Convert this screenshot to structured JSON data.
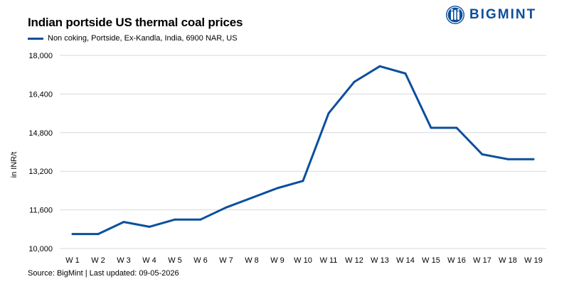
{
  "brand": {
    "name": "BIGMINT",
    "icon": "bigmint-logo-icon"
  },
  "colors": {
    "series": "#0b4f9c",
    "grid": "#d9d9d9",
    "brand": "#0b4f9c"
  },
  "source": "Source: BigMint | Last updated: 09-05-2026",
  "chart_data": {
    "type": "line",
    "title": "Indian portside US thermal coal prices",
    "xlabel": "",
    "ylabel": "in INR/t",
    "ylim": [
      10000,
      18000
    ],
    "yticks": [
      10000,
      11600,
      13200,
      14800,
      16400,
      18000
    ],
    "ytick_labels": [
      "10,000",
      "11,600",
      "13,200",
      "14,800",
      "16,400",
      "18,000"
    ],
    "grid": true,
    "legend_position": "top-left",
    "categories": [
      "W 1",
      "W 2",
      "W 3",
      "W 4",
      "W 5",
      "W 6",
      "W 7",
      "W 8",
      "W 9",
      "W 10",
      "W 11",
      "W 12",
      "W 13",
      "W 14",
      "W 15",
      "W 16",
      "W 17",
      "W 18",
      "W 19"
    ],
    "series": [
      {
        "name": "Non coking, Portside, Ex-Kandla, India, 6900 NAR, US",
        "values": [
          10600,
          10600,
          11100,
          10900,
          11200,
          11200,
          11700,
          12100,
          12500,
          12800,
          15600,
          16900,
          17550,
          17250,
          15000,
          15000,
          13900,
          13700,
          13700
        ]
      }
    ]
  }
}
